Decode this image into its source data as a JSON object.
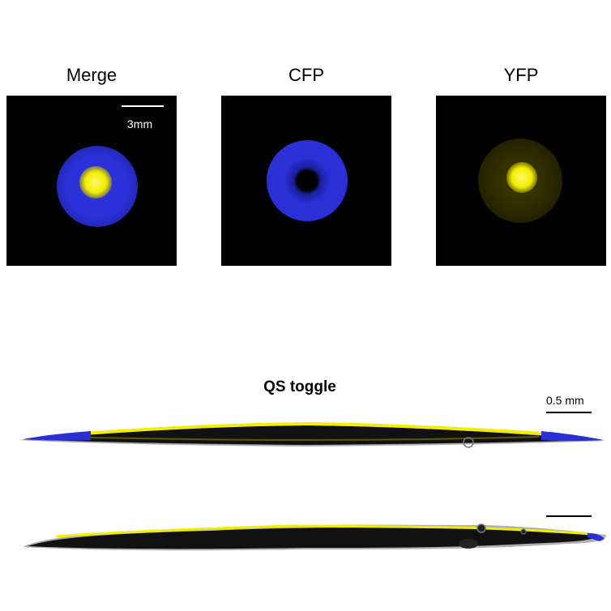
{
  "panels": [
    {
      "title": "Merge",
      "scale_label": "3mm"
    },
    {
      "title": "CFP"
    },
    {
      "title": "YFP"
    }
  ],
  "section": {
    "title": "QS toggle",
    "scale_label": "0.5 mm"
  },
  "colors": {
    "cfp_blue": "#2a2fd6",
    "yfp_yellow": "#f2ee00",
    "background": "#000000"
  }
}
